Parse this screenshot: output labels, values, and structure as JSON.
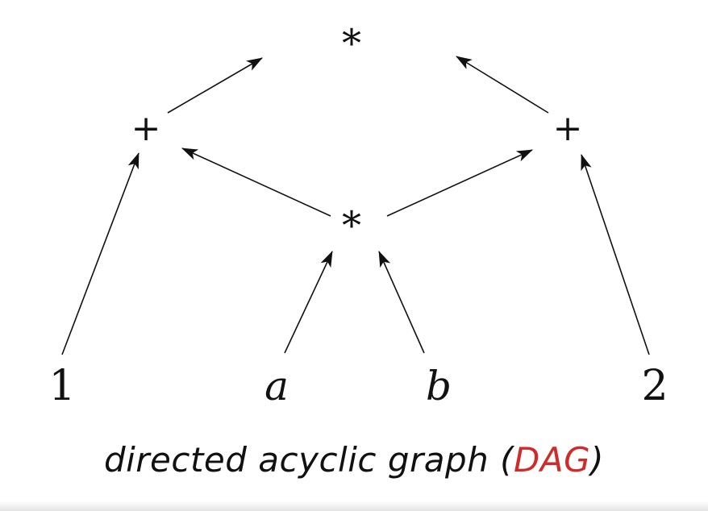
{
  "diagram": {
    "nodes": {
      "top_mul": "*",
      "left_add": "+",
      "right_add": "+",
      "mid_mul": "*",
      "leaf_1": "1",
      "leaf_a": "a",
      "leaf_b": "b",
      "leaf_2": "2"
    },
    "edges": [
      {
        "from": "left_add",
        "to": "top_mul"
      },
      {
        "from": "right_add",
        "to": "top_mul"
      },
      {
        "from": "mid_mul",
        "to": "left_add"
      },
      {
        "from": "mid_mul",
        "to": "right_add"
      },
      {
        "from": "leaf_1",
        "to": "left_add"
      },
      {
        "from": "leaf_2",
        "to": "right_add"
      },
      {
        "from": "leaf_a",
        "to": "mid_mul"
      },
      {
        "from": "leaf_b",
        "to": "mid_mul"
      }
    ]
  },
  "caption": {
    "prefix": "directed acyclic graph (",
    "accent": "DAG",
    "suffix": ")",
    "accent_color": "#d12a2a"
  }
}
